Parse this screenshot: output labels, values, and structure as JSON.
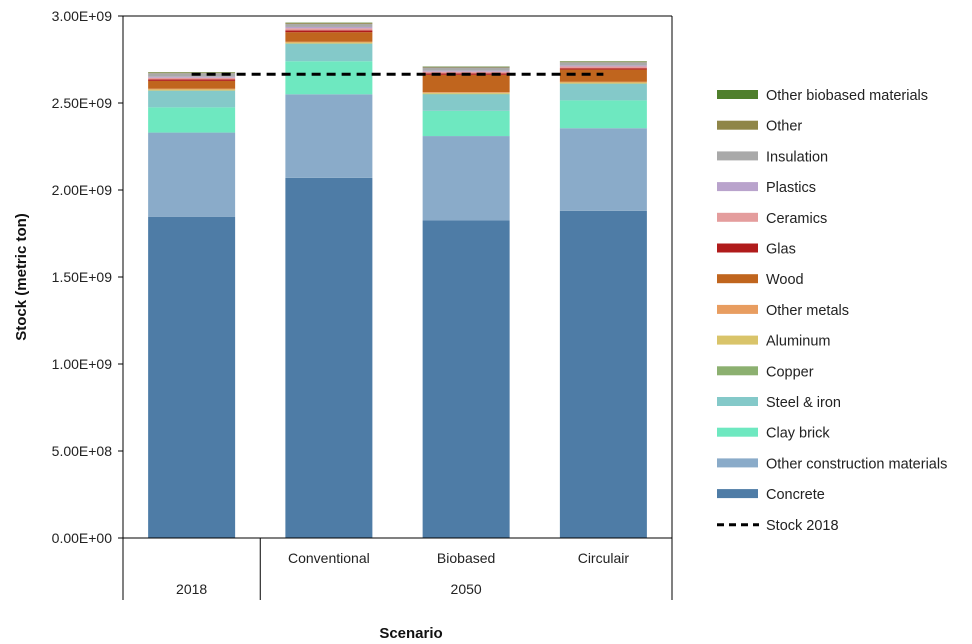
{
  "chart_data": {
    "type": "bar",
    "stacked": true,
    "xlabel": "Scenario",
    "ylabel": "Stock (metric ton)",
    "ylim": [
      0,
      3000000000
    ],
    "yticks": [
      0,
      500000000,
      1000000000,
      1500000000,
      2000000000,
      2500000000,
      3000000000
    ],
    "ytick_labels": [
      "0.00E+00",
      "5.00E+08",
      "1.00E+09",
      "1.50E+09",
      "2.00E+09",
      "2.50E+09",
      "3.00E+09"
    ],
    "grid": false,
    "legend_position": "right",
    "categories": [
      "",
      "Conventional",
      "Biobased",
      "Circulair"
    ],
    "groups": [
      {
        "label": "2018",
        "categories": [
          0
        ]
      },
      {
        "label": "2050",
        "categories": [
          1,
          2,
          3
        ]
      }
    ],
    "series": [
      {
        "name": "Concrete",
        "color": "#4e7ca6",
        "values": [
          1845000000,
          2070000000,
          1825000000,
          1880000000
        ]
      },
      {
        "name": "Other construction materials",
        "color": "#8aabc9",
        "values": [
          485000000,
          480000000,
          485000000,
          475000000
        ]
      },
      {
        "name": "Clay brick",
        "color": "#6ee8c0",
        "values": [
          145000000,
          190000000,
          145000000,
          160000000
        ]
      },
      {
        "name": "Steel & iron",
        "color": "#84c9c9",
        "values": [
          95000000,
          100000000,
          95000000,
          95000000
        ]
      },
      {
        "name": "Copper",
        "color": "#8cb070",
        "values": [
          3000000,
          3000000,
          3000000,
          3000000
        ]
      },
      {
        "name": "Aluminum",
        "color": "#d9c46a",
        "values": [
          5000000,
          5000000,
          5000000,
          5000000
        ]
      },
      {
        "name": "Other metals",
        "color": "#e89d60",
        "values": [
          4000000,
          4000000,
          4000000,
          4000000
        ]
      },
      {
        "name": "Wood",
        "color": "#c0651e",
        "values": [
          45000000,
          55000000,
          100000000,
          70000000
        ]
      },
      {
        "name": "Glas",
        "color": "#b01b1b",
        "values": [
          8000000,
          10000000,
          8000000,
          8000000
        ]
      },
      {
        "name": "Ceramics",
        "color": "#e49d9d",
        "values": [
          10000000,
          12000000,
          10000000,
          10000000
        ]
      },
      {
        "name": "Plastics",
        "color": "#b9a3cc",
        "values": [
          6000000,
          8000000,
          6000000,
          6000000
        ]
      },
      {
        "name": "Insulation",
        "color": "#a9a9a9",
        "values": [
          20000000,
          18000000,
          18000000,
          18000000
        ]
      },
      {
        "name": "Other",
        "color": "#8f8648",
        "values": [
          4000000,
          5000000,
          4000000,
          4000000
        ]
      },
      {
        "name": "Other biobased materials",
        "color": "#4f7f2c",
        "values": [
          2000000,
          2000000,
          2000000,
          2000000
        ]
      }
    ],
    "reference_line": {
      "name": "Stock 2018",
      "value": 2665000000,
      "style": "dashed",
      "color": "#000000"
    }
  }
}
